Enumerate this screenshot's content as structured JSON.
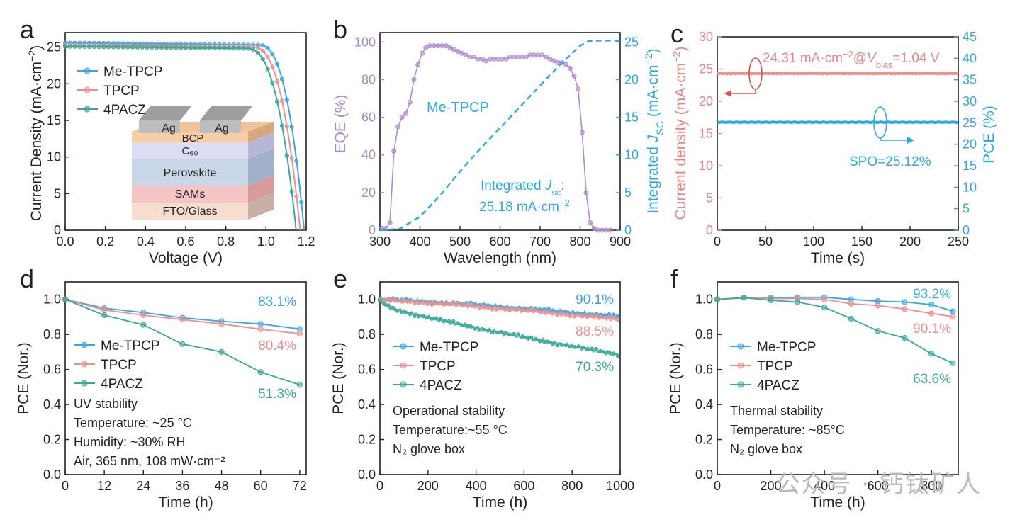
{
  "colors": {
    "blue": "#3aa6e0",
    "pink": "#ee8f8f",
    "teal": "#3aa898",
    "purple": "#b08bd0",
    "red_axis": "#e98585",
    "blue_axis": "#2fa7e3",
    "purple_axis": "#a58bc7"
  },
  "watermark": "公众号 · 钙钛矿人",
  "chart_data": [
    {
      "panel": "a",
      "type": "line",
      "xlabel": "Voltage (V)",
      "ylabel": "Current Density (mA·cm⁻²)",
      "xlim": [
        0,
        1.2
      ],
      "ylim": [
        0,
        27
      ],
      "xticks": [
        "0.0",
        "0.2",
        "0.4",
        "0.6",
        "0.8",
        "1.0",
        "1.2"
      ],
      "yticks": [
        "0",
        "5",
        "10",
        "15",
        "20",
        "25"
      ],
      "legend": [
        "Me-TPCP",
        "TPCP",
        "4PACZ"
      ],
      "series": [
        {
          "name": "Me-TPCP",
          "jsc": 25.6,
          "voc": 1.19,
          "knee": 0.96,
          "color": "#3aa6e0"
        },
        {
          "name": "TPCP",
          "jsc": 25.3,
          "voc": 1.17,
          "knee": 0.93,
          "color": "#ee8f8f"
        },
        {
          "name": "4PACZ",
          "jsc": 25.1,
          "voc": 1.15,
          "knee": 0.9,
          "color": "#3aa898"
        }
      ],
      "device_layers": [
        "Ag",
        "Ag",
        "BCP",
        "C₆₀",
        "Perovskite",
        "SAMs",
        "FTO/Glass"
      ]
    },
    {
      "panel": "b",
      "type": "line",
      "xlabel": "Wavelength (nm)",
      "ylabel": "EQE (%)",
      "y2label": "Integrated J_SC (mA·cm⁻²)",
      "xlim": [
        300,
        900
      ],
      "ylim": [
        0,
        105
      ],
      "y2lim": [
        0,
        26.25
      ],
      "xticks": [
        "300",
        "400",
        "500",
        "600",
        "700",
        "800",
        "900"
      ],
      "yticks": [
        "0",
        "20",
        "40",
        "60",
        "80",
        "100"
      ],
      "y2ticks": [
        "0",
        "5",
        "10",
        "15",
        "20",
        "25"
      ],
      "series_label": "Me-TPCP",
      "annotation": [
        "Integrated J_sc:",
        "25.18 mA·cm⁻²"
      ],
      "eqe_x": [
        305,
        315,
        325,
        335,
        345,
        355,
        365,
        375,
        385,
        395,
        405,
        415,
        425,
        435,
        445,
        455,
        465,
        475,
        485,
        495,
        505,
        515,
        525,
        535,
        545,
        555,
        565,
        575,
        585,
        595,
        605,
        615,
        625,
        635,
        645,
        655,
        665,
        675,
        685,
        695,
        705,
        715,
        725,
        735,
        745,
        755,
        765,
        775,
        785,
        795,
        805,
        815,
        825,
        835,
        845,
        855,
        865,
        875
      ],
      "eqe_y": [
        1,
        1,
        4,
        42,
        55,
        60,
        62,
        68,
        80,
        88,
        94,
        97,
        98,
        98,
        98,
        98,
        98,
        97,
        96,
        95,
        94,
        93,
        92,
        92,
        91,
        91,
        90,
        91,
        91,
        91,
        91,
        91,
        92,
        92,
        92,
        92,
        92,
        93,
        93,
        93,
        93,
        92,
        91,
        90,
        89,
        89,
        88,
        86,
        82,
        75,
        52,
        20,
        4,
        1,
        0,
        0,
        0,
        0
      ],
      "jsc_x": [
        300,
        350,
        400,
        450,
        500,
        550,
        600,
        650,
        700,
        750,
        800,
        820,
        840,
        860,
        880,
        900
      ],
      "jsc_y": [
        0,
        0.2,
        1.8,
        4.6,
        7.8,
        10.8,
        13.6,
        16.4,
        19.2,
        22.0,
        24.5,
        25.1,
        25.18,
        25.18,
        25.18,
        25.18
      ]
    },
    {
      "panel": "c",
      "type": "line",
      "xlabel": "Time (s)",
      "ylabel": "Current density (mA·cm⁻²)",
      "y2label": "PCE (%)",
      "xlim": [
        0,
        250
      ],
      "ylim": [
        0,
        30
      ],
      "y2lim": [
        0,
        45
      ],
      "xticks": [
        "0",
        "50",
        "100",
        "150",
        "200",
        "250"
      ],
      "yticks": [
        "0",
        "5",
        "10",
        "15",
        "20",
        "25",
        "30"
      ],
      "y2ticks": [
        "0",
        "5",
        "10",
        "15",
        "20",
        "25",
        "30",
        "35",
        "40",
        "45"
      ],
      "current_value": 24.31,
      "pce_value": 25.12,
      "annotation_current": "24.31 mA·cm⁻²@V_bias=1.04 V",
      "annotation_pce": "SPO=25.12%"
    },
    {
      "panel": "d",
      "type": "line",
      "xlabel": "Time (h)",
      "ylabel": "PCE (Nor.)",
      "xlim": [
        0,
        74
      ],
      "ylim": [
        0,
        1.1
      ],
      "xticks": [
        "0",
        "12",
        "24",
        "36",
        "48",
        "60",
        "72"
      ],
      "yticks": [
        "0.0",
        "0.2",
        "0.4",
        "0.6",
        "0.8",
        "1.0"
      ],
      "x": [
        0,
        12,
        24,
        36,
        48,
        60,
        72
      ],
      "series": [
        {
          "name": "Me-TPCP",
          "values": [
            1.0,
            0.95,
            0.925,
            0.895,
            0.875,
            0.86,
            0.831
          ],
          "color": "#3aa6e0"
        },
        {
          "name": "TPCP",
          "values": [
            1.0,
            0.94,
            0.91,
            0.885,
            0.86,
            0.83,
            0.804
          ],
          "color": "#ee8f8f"
        },
        {
          "name": "4PACZ",
          "values": [
            1.0,
            0.91,
            0.855,
            0.745,
            0.7,
            0.585,
            0.513
          ],
          "color": "#3aa898"
        }
      ],
      "final_labels": [
        "83.1%",
        "80.4%",
        "51.3%"
      ],
      "notes": [
        "UV stability",
        "Temperature: ~25 °C",
        "Humidity: ~30% RH",
        "Air, 365 nm, 108 mW·cm⁻²"
      ]
    },
    {
      "panel": "e",
      "type": "line",
      "xlabel": "Time (h)",
      "ylabel": "PCE (Nor.)",
      "xlim": [
        0,
        1000
      ],
      "ylim": [
        0,
        1.1
      ],
      "xticks": [
        "0",
        "200",
        "400",
        "600",
        "800",
        "1000"
      ],
      "yticks": [
        "0.0",
        "0.2",
        "0.4",
        "0.6",
        "0.8",
        "1.0"
      ],
      "series": [
        {
          "name": "Me-TPCP",
          "start": 1.0,
          "end": 0.901,
          "color": "#3aa6e0"
        },
        {
          "name": "TPCP",
          "start": 0.995,
          "end": 0.885,
          "color": "#ee8f8f"
        },
        {
          "name": "4PACZ",
          "start": 0.99,
          "end": 0.703,
          "color": "#3aa898"
        }
      ],
      "final_labels": [
        "90.1%",
        "88.5%",
        "70.3%"
      ],
      "notes": [
        "Operational stability",
        "Temperature:~55 °C",
        "N₂ glove box"
      ]
    },
    {
      "panel": "f",
      "type": "line",
      "xlabel": "Time (h)",
      "ylabel": "PCE (Nor.)",
      "xlim": [
        0,
        900
      ],
      "ylim": [
        0,
        1.1
      ],
      "xticks": [
        "0",
        "200",
        "400",
        "600",
        "800"
      ],
      "yticks": [
        "0.0",
        "0.2",
        "0.4",
        "0.6",
        "0.8",
        "1.0"
      ],
      "x": [
        0,
        100,
        200,
        300,
        400,
        500,
        600,
        700,
        800,
        880
      ],
      "series": [
        {
          "name": "Me-TPCP",
          "values": [
            1.0,
            1.01,
            1.01,
            1.012,
            1.012,
            1.0,
            0.99,
            0.985,
            0.97,
            0.932
          ],
          "color": "#3aa6e0"
        },
        {
          "name": "TPCP",
          "values": [
            1.0,
            1.01,
            1.005,
            1.005,
            1.0,
            0.975,
            0.965,
            0.945,
            0.92,
            0.901
          ],
          "color": "#ee8f8f"
        },
        {
          "name": "4PACZ",
          "values": [
            1.0,
            1.01,
            0.995,
            0.985,
            0.955,
            0.89,
            0.82,
            0.78,
            0.69,
            0.636
          ],
          "color": "#3aa898"
        }
      ],
      "final_labels": [
        "93.2%",
        "90.1%",
        "63.6%"
      ],
      "notes": [
        "Thermal stability",
        "Temperature: ~85°C",
        "N₂ glove box"
      ]
    }
  ]
}
